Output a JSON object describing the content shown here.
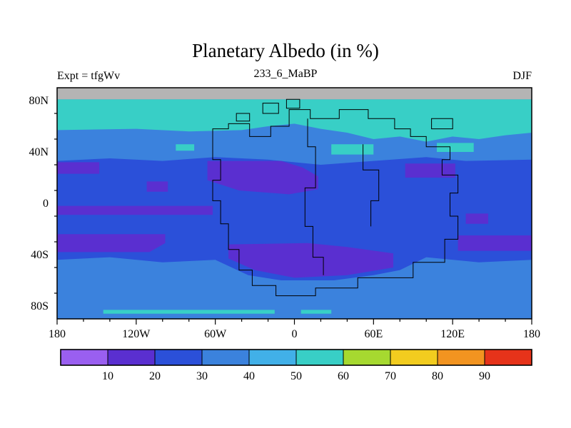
{
  "chart_data": {
    "type": "heatmap",
    "title": "Planetary Albedo (in %)",
    "subtitle": "233_6_MaBP",
    "experiment_label": "Expt = tfgWv",
    "season_label": "DJF",
    "lon_range": [
      -180,
      180
    ],
    "lat_range": [
      -90,
      90
    ],
    "x_axis": {
      "tick_labels": [
        "180",
        "120W",
        "60W",
        "0",
        "60E",
        "120E",
        "180"
      ],
      "tick_lons": [
        -180,
        -120,
        -60,
        0,
        60,
        120,
        180
      ],
      "minor_step": 20
    },
    "y_axis": {
      "tick_labels": [
        "80N",
        "40N",
        "0",
        "40S",
        "80S"
      ],
      "tick_lats": [
        80,
        40,
        0,
        -40,
        -80
      ],
      "minor_step": 20
    },
    "colorbar": {
      "labels": [
        "10",
        "20",
        "30",
        "40",
        "50",
        "60",
        "70",
        "80",
        "90"
      ],
      "levels": [
        10,
        20,
        30,
        40,
        50,
        60,
        70,
        80,
        90
      ],
      "colors": [
        "#9a5ff0",
        "#5a2fd0",
        "#2b50d9",
        "#3b82dd",
        "#41b0e8",
        "#38cfc6",
        "#a6d930",
        "#f2cc1f",
        "#f29420",
        "#e6331a"
      ]
    },
    "no_data_color": "#b4b4b4",
    "background_albedo": "30-40",
    "background_color": "#3b82dd",
    "field_regions": [
      {
        "name": "midlat-belt",
        "albedo": "20-30",
        "color": "#2b50d9",
        "points": [
          [
            -180,
            33
          ],
          [
            -140,
            35
          ],
          [
            -100,
            33
          ],
          [
            -60,
            36
          ],
          [
            -20,
            34
          ],
          [
            20,
            30
          ],
          [
            60,
            33
          ],
          [
            100,
            36
          ],
          [
            130,
            33
          ],
          [
            180,
            34
          ],
          [
            180,
            -44
          ],
          [
            140,
            -46
          ],
          [
            100,
            -42
          ],
          [
            80,
            -52
          ],
          [
            60,
            -56
          ],
          [
            30,
            -60
          ],
          [
            -10,
            -60
          ],
          [
            -35,
            -56
          ],
          [
            -60,
            -44
          ],
          [
            -100,
            -46
          ],
          [
            -140,
            -42
          ],
          [
            -180,
            -44
          ]
        ]
      },
      {
        "name": "purple-west-band",
        "albedo": "10-20",
        "color": "#5a2fd0",
        "points": [
          [
            -180,
            32
          ],
          [
            -148,
            32
          ],
          [
            -148,
            23
          ],
          [
            -180,
            23
          ]
        ]
      },
      {
        "name": "purple-nw-blob",
        "albedo": "10-20",
        "color": "#5a2fd0",
        "points": [
          [
            -66,
            33
          ],
          [
            -10,
            33
          ],
          [
            6,
            28
          ],
          [
            18,
            21
          ],
          [
            18,
            11
          ],
          [
            -4,
            7
          ],
          [
            -42,
            10
          ],
          [
            -66,
            18
          ]
        ]
      },
      {
        "name": "purple-small-west",
        "albedo": "10-20",
        "color": "#5a2fd0",
        "points": [
          [
            -112,
            17
          ],
          [
            -96,
            17
          ],
          [
            -96,
            9
          ],
          [
            -112,
            9
          ]
        ]
      },
      {
        "name": "purple-ne-blob",
        "albedo": "10-20",
        "color": "#5a2fd0",
        "points": [
          [
            84,
            31
          ],
          [
            122,
            31
          ],
          [
            122,
            20
          ],
          [
            84,
            20
          ]
        ]
      },
      {
        "name": "purple-equatorial-strip",
        "albedo": "10-20",
        "color": "#5a2fd0",
        "points": [
          [
            -180,
            -2
          ],
          [
            -62,
            -2
          ],
          [
            -62,
            -9
          ],
          [
            -180,
            -9
          ]
        ]
      },
      {
        "name": "purple-sw-band",
        "albedo": "10-20",
        "color": "#5a2fd0",
        "points": [
          [
            -180,
            -24
          ],
          [
            -98,
            -24
          ],
          [
            -98,
            -31
          ],
          [
            -110,
            -38
          ],
          [
            -180,
            -38
          ]
        ]
      },
      {
        "name": "purple-south-blob",
        "albedo": "10-20",
        "color": "#5a2fd0",
        "points": [
          [
            -50,
            -32
          ],
          [
            10,
            -31
          ],
          [
            40,
            -34
          ],
          [
            75,
            -39
          ],
          [
            75,
            -50
          ],
          [
            40,
            -56
          ],
          [
            0,
            -58
          ],
          [
            -30,
            -52
          ],
          [
            -50,
            -43
          ]
        ]
      },
      {
        "name": "purple-se-band",
        "albedo": "10-20",
        "color": "#5a2fd0",
        "points": [
          [
            124,
            -25
          ],
          [
            180,
            -25
          ],
          [
            180,
            -37
          ],
          [
            124,
            -37
          ]
        ]
      },
      {
        "name": "purple-small-east",
        "albedo": "10-20",
        "color": "#5a2fd0",
        "points": [
          [
            130,
            -8
          ],
          [
            147,
            -8
          ],
          [
            147,
            -16
          ],
          [
            130,
            -16
          ]
        ]
      },
      {
        "name": "cyan-polar-band",
        "albedo": "50-60",
        "color": "#38cfc6",
        "points": [
          [
            -180,
            81
          ],
          [
            180,
            81
          ],
          [
            180,
            55
          ],
          [
            160,
            53
          ],
          [
            140,
            50
          ],
          [
            120,
            52
          ],
          [
            100,
            48
          ],
          [
            80,
            52
          ],
          [
            60,
            50
          ],
          [
            40,
            55
          ],
          [
            20,
            58
          ],
          [
            0,
            62
          ],
          [
            -20,
            60
          ],
          [
            -40,
            57
          ],
          [
            -80,
            56
          ],
          [
            -120,
            58
          ],
          [
            -180,
            57
          ]
        ]
      },
      {
        "name": "cyan-patch-central",
        "albedo": "50-60",
        "color": "#38cfc6",
        "points": [
          [
            28,
            46
          ],
          [
            60,
            46
          ],
          [
            60,
            38
          ],
          [
            28,
            38
          ]
        ]
      },
      {
        "name": "cyan-patch-east",
        "albedo": "50-60",
        "color": "#38cfc6",
        "points": [
          [
            108,
            47
          ],
          [
            136,
            47
          ],
          [
            136,
            40
          ],
          [
            108,
            40
          ]
        ]
      },
      {
        "name": "cyan-patch-west",
        "albedo": "50-60",
        "color": "#38cfc6",
        "points": [
          [
            -90,
            46
          ],
          [
            -76,
            46
          ],
          [
            -76,
            41
          ],
          [
            -90,
            41
          ]
        ]
      },
      {
        "name": "polar-no-data",
        "albedo": "no-data",
        "color": "#b4b4b4",
        "points": [
          [
            -180,
            90
          ],
          [
            180,
            90
          ],
          [
            180,
            81
          ],
          [
            -180,
            81
          ]
        ]
      },
      {
        "name": "cyan-bottom-strip",
        "albedo": "50-60",
        "color": "#38cfc6",
        "points": [
          [
            -145,
            -83
          ],
          [
            -15,
            -83
          ],
          [
            -15,
            -86
          ],
          [
            -145,
            -86
          ]
        ]
      },
      {
        "name": "cyan-bottom-square",
        "albedo": "50-60",
        "color": "#38cfc6",
        "points": [
          [
            5,
            -83
          ],
          [
            28,
            -83
          ],
          [
            28,
            -86
          ],
          [
            5,
            -86
          ]
        ]
      }
    ],
    "coastlines": [
      {
        "name": "supercontinent",
        "closed": true,
        "points": [
          [
            -62,
            58
          ],
          [
            -62,
            34
          ],
          [
            -56,
            34
          ],
          [
            -56,
            18
          ],
          [
            -62,
            18
          ],
          [
            -62,
            2
          ],
          [
            -56,
            2
          ],
          [
            -56,
            -16
          ],
          [
            -50,
            -16
          ],
          [
            -50,
            -36
          ],
          [
            -42,
            -36
          ],
          [
            -42,
            -52
          ],
          [
            -32,
            -52
          ],
          [
            -32,
            -64
          ],
          [
            -14,
            -64
          ],
          [
            -14,
            -72
          ],
          [
            16,
            -72
          ],
          [
            16,
            -66
          ],
          [
            48,
            -66
          ],
          [
            48,
            -58
          ],
          [
            90,
            -58
          ],
          [
            90,
            -46
          ],
          [
            114,
            -46
          ],
          [
            114,
            -28
          ],
          [
            124,
            -28
          ],
          [
            124,
            -10
          ],
          [
            118,
            -10
          ],
          [
            118,
            8
          ],
          [
            124,
            8
          ],
          [
            124,
            22
          ],
          [
            112,
            22
          ],
          [
            112,
            34
          ],
          [
            118,
            34
          ],
          [
            118,
            44
          ],
          [
            100,
            44
          ],
          [
            100,
            52
          ],
          [
            88,
            52
          ],
          [
            88,
            58
          ],
          [
            76,
            58
          ],
          [
            76,
            66
          ],
          [
            56,
            66
          ],
          [
            56,
            73
          ],
          [
            34,
            73
          ],
          [
            34,
            66
          ],
          [
            12,
            66
          ],
          [
            12,
            73
          ],
          [
            -4,
            73
          ],
          [
            -4,
            60
          ],
          [
            -18,
            60
          ],
          [
            -18,
            52
          ],
          [
            -34,
            52
          ],
          [
            -34,
            62
          ],
          [
            -50,
            62
          ],
          [
            -50,
            58
          ]
        ]
      },
      {
        "name": "island-1",
        "closed": true,
        "points": [
          [
            -24,
            70
          ],
          [
            -24,
            78
          ],
          [
            -12,
            78
          ],
          [
            -12,
            70
          ]
        ]
      },
      {
        "name": "island-2",
        "closed": true,
        "points": [
          [
            -6,
            74
          ],
          [
            -6,
            81
          ],
          [
            4,
            81
          ],
          [
            4,
            74
          ]
        ]
      },
      {
        "name": "island-3",
        "closed": true,
        "points": [
          [
            104,
            58
          ],
          [
            104,
            66
          ],
          [
            120,
            66
          ],
          [
            120,
            58
          ]
        ]
      },
      {
        "name": "island-4",
        "closed": true,
        "points": [
          [
            -44,
            64
          ],
          [
            -44,
            70
          ],
          [
            -34,
            70
          ],
          [
            -34,
            64
          ]
        ]
      },
      {
        "name": "inner-boundary-1",
        "closed": false,
        "points": [
          [
            10,
            66
          ],
          [
            10,
            44
          ],
          [
            16,
            44
          ],
          [
            16,
            12
          ],
          [
            8,
            12
          ],
          [
            8,
            -18
          ],
          [
            14,
            -18
          ],
          [
            14,
            -42
          ],
          [
            22,
            -42
          ],
          [
            22,
            -56
          ]
        ]
      },
      {
        "name": "inner-boundary-2",
        "closed": false,
        "points": [
          [
            52,
            46
          ],
          [
            52,
            26
          ],
          [
            64,
            26
          ],
          [
            64,
            2
          ],
          [
            58,
            2
          ],
          [
            58,
            -18
          ]
        ]
      }
    ]
  }
}
